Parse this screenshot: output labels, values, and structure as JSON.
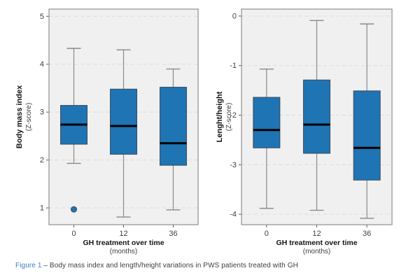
{
  "figure": {
    "caption_label": "Figure 1",
    "caption_text": " – Body mass index and length/height variations in PWS patients treated with GH"
  },
  "colors": {
    "box_fill": "#1f74b4",
    "box_stroke": "#3f4b59",
    "median": "#000000",
    "whisker": "#8a8a8a",
    "plot_bg": "#f0f0f0",
    "grid": "#dcdcdc",
    "frame": "#8f8f8f",
    "tick": "#5a5a5a",
    "tick_label": "#3f3f3f",
    "axis_title": "#141414",
    "caption_blue": "#3c7dc8"
  },
  "chart_data": [
    {
      "type": "box",
      "title": "",
      "ylabel": "Body mass index",
      "ylabel_sub": "(Z-score)",
      "xlabel": "GH treatment over time",
      "xlabel_sub": "(months)",
      "categories": [
        "0",
        "12",
        "36"
      ],
      "yticks": [
        5,
        4,
        3,
        2,
        1
      ],
      "ylim": [
        0.65,
        5.15
      ],
      "grid": true,
      "legend": "none",
      "boxes": [
        {
          "category": "0",
          "whisker_low": 1.93,
          "q1": 2.33,
          "median": 2.74,
          "q3": 3.14,
          "whisker_high": 4.33,
          "outliers": [
            0.97
          ]
        },
        {
          "category": "12",
          "whisker_low": 0.81,
          "q1": 2.12,
          "median": 2.71,
          "q3": 3.48,
          "whisker_high": 4.3,
          "outliers": []
        },
        {
          "category": "36",
          "whisker_low": 0.96,
          "q1": 1.89,
          "median": 2.35,
          "q3": 3.52,
          "whisker_high": 3.9,
          "outliers": []
        }
      ]
    },
    {
      "type": "box",
      "title": "",
      "ylabel": "Lenght/height",
      "ylabel_sub": "(Z-score)",
      "xlabel": "GH treatment over time",
      "xlabel_sub": "(months)",
      "categories": [
        "0",
        "12",
        "36"
      ],
      "yticks": [
        0,
        -1,
        -2,
        -3,
        -4
      ],
      "ylim": [
        -4.21,
        0.14
      ],
      "grid": true,
      "legend": "none",
      "boxes": [
        {
          "category": "0",
          "whisker_low": -3.88,
          "q1": -2.66,
          "median": -2.3,
          "q3": -1.64,
          "whisker_high": -1.07,
          "outliers": []
        },
        {
          "category": "12",
          "whisker_low": -3.92,
          "q1": -2.77,
          "median": -2.19,
          "q3": -1.29,
          "whisker_high": -0.09,
          "outliers": []
        },
        {
          "category": "36",
          "whisker_low": -4.08,
          "q1": -3.31,
          "median": -2.66,
          "q3": -1.51,
          "whisker_high": -0.16,
          "outliers": []
        }
      ]
    }
  ]
}
